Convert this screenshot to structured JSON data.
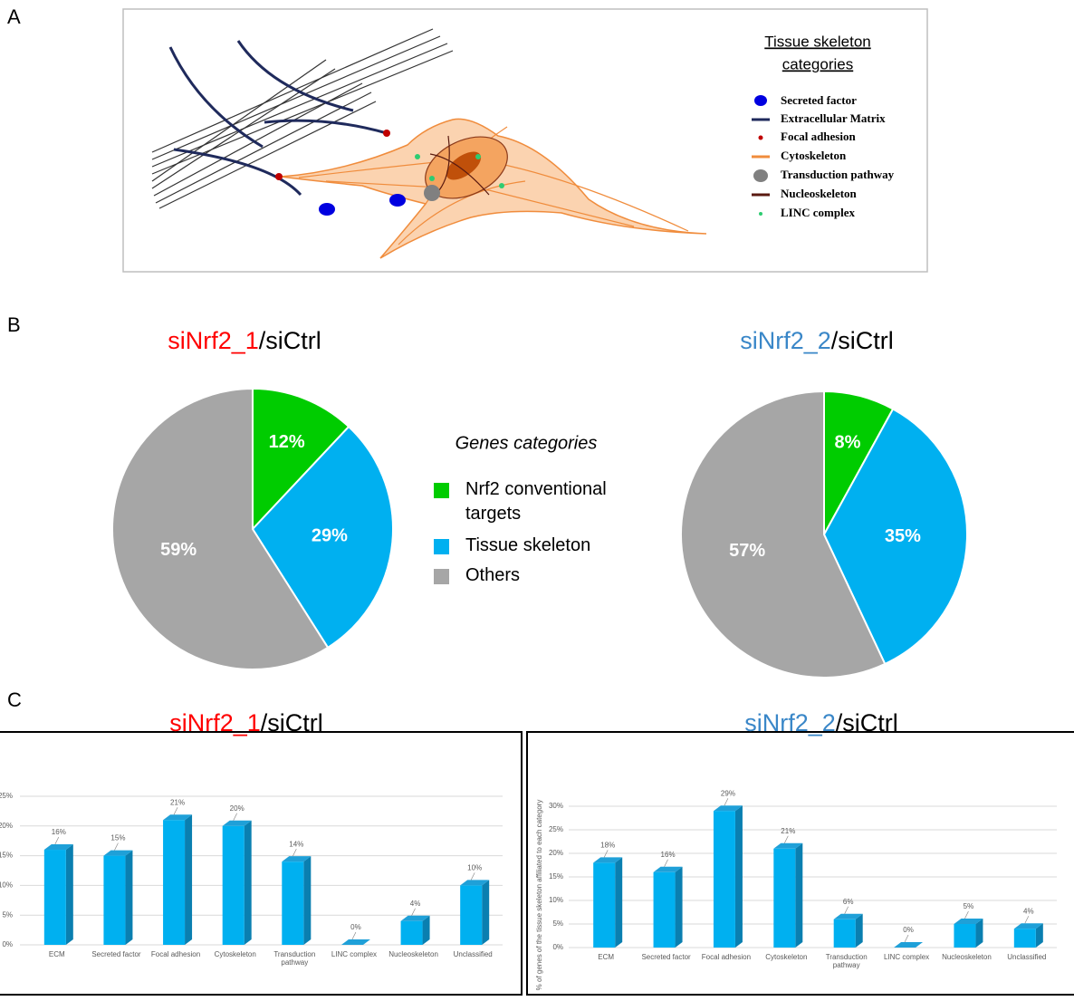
{
  "panel_labels": [
    "A",
    "B",
    "C"
  ],
  "panel_a": {
    "legend_title": [
      "Tissue skeleton",
      "categories"
    ],
    "legend_items": [
      "Secreted factor",
      "Extracellular Matrix",
      "Focal adhesion",
      "Cytoskeleton",
      "Transduction pathway",
      "Nucleoskeleton",
      "LINC complex"
    ]
  },
  "chart_data": [
    {
      "type": "pie",
      "title": [
        "siNrf2_1",
        "/siCtrl"
      ],
      "title_colors": [
        "#ff0000",
        "#000000"
      ],
      "legend_title": "Genes categories",
      "categories": [
        "Nrf2 conventional targets",
        "Tissue skeleton",
        "Others"
      ],
      "values": [
        12,
        29,
        59
      ],
      "value_labels": [
        "12%",
        "29%",
        "59%"
      ],
      "colors": [
        "#00cc00",
        "#00b0f0",
        "#a6a6a6"
      ]
    },
    {
      "type": "pie",
      "title": [
        "siNrf2_2",
        "/siCtrl"
      ],
      "title_colors": [
        "#3a87c8",
        "#000000"
      ],
      "values": [
        8,
        35,
        57
      ],
      "value_labels": [
        "8%",
        "35%",
        "57%"
      ],
      "colors": [
        "#00cc00",
        "#00b0f0",
        "#a6a6a6"
      ]
    },
    {
      "type": "bar",
      "title": [
        "siNrf2_1",
        "/siCtrl"
      ],
      "title_colors": [
        "#ff0000",
        "#000000"
      ],
      "categories": [
        "ECM",
        "Secreted factor",
        "Focal adhesion",
        "Cytoskeleton",
        "Transduction pathway",
        "LINC complex",
        "Nucleoskeleton",
        "Unclassified"
      ],
      "values": [
        16,
        15,
        21,
        20,
        14,
        0,
        4,
        10
      ],
      "value_labels": [
        "16%",
        "15%",
        "21%",
        "20%",
        "14%",
        "0%",
        "4%",
        "10%"
      ],
      "color": "#00b0f0",
      "ylim": [
        0,
        25
      ],
      "yticks": [
        {
          "value": 0,
          "label": "0%"
        },
        {
          "value": 5,
          "label": "5%"
        },
        {
          "value": 10,
          "label": "10%"
        },
        {
          "value": 15,
          "label": "15%"
        },
        {
          "value": 20,
          "label": "20%"
        },
        {
          "value": 25,
          "label": "25%"
        }
      ],
      "grid": true
    },
    {
      "type": "bar",
      "title": [
        "siNrf2_2",
        "/siCtrl"
      ],
      "title_colors": [
        "#3a87c8",
        "#000000"
      ],
      "ylabel": "% of genes of the tissue skeleton affiliated to each category",
      "categories": [
        "ECM",
        "Secreted factor",
        "Focal adhesion",
        "Cytoskeleton",
        "Transduction pathway",
        "LINC complex",
        "Nucleoskeleton",
        "Unclassified"
      ],
      "values": [
        18,
        16,
        29,
        21,
        6,
        0,
        5,
        4
      ],
      "value_labels": [
        "18%",
        "16%",
        "29%",
        "21%",
        "6%",
        "0%",
        "5%",
        "4%"
      ],
      "color": "#00b0f0",
      "ylim": [
        0,
        30
      ],
      "yticks": [
        {
          "value": 0,
          "label": "0%"
        },
        {
          "value": 5,
          "label": "5%"
        },
        {
          "value": 10,
          "label": "10%"
        },
        {
          "value": 15,
          "label": "15%"
        },
        {
          "value": 20,
          "label": "20%"
        },
        {
          "value": 25,
          "label": "25%"
        },
        {
          "value": 30,
          "label": "30%"
        }
      ],
      "grid": true
    }
  ]
}
